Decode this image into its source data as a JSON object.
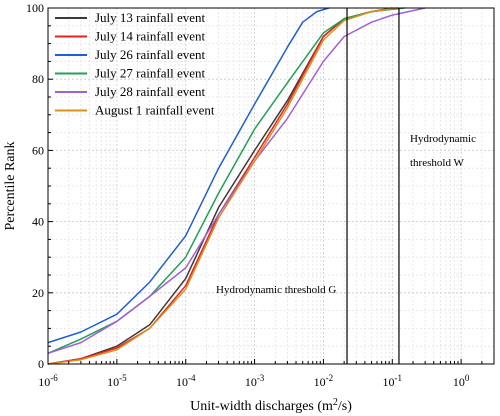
{
  "chart_data": {
    "type": "line",
    "title": "",
    "xlabel": "Unit-width discharges (m",
    "xlabel_sup": "2",
    "xlabel_end": "/s)",
    "ylabel": "Percentile Rank",
    "x_scale": "log",
    "xlim": [
      1e-06,
      3
    ],
    "ylim": [
      0,
      100
    ],
    "grid": true,
    "legend_position": "top-left",
    "x_ticks": [
      {
        "value": 1e-06,
        "base": "10",
        "exp": "-6"
      },
      {
        "value": 1e-05,
        "base": "10",
        "exp": "-5"
      },
      {
        "value": 0.0001,
        "base": "10",
        "exp": "-4"
      },
      {
        "value": 0.001,
        "base": "10",
        "exp": "-3"
      },
      {
        "value": 0.01,
        "base": "10",
        "exp": "-2"
      },
      {
        "value": 0.1,
        "base": "10",
        "exp": "-1"
      },
      {
        "value": 1,
        "base": "10",
        "exp": "0"
      }
    ],
    "y_ticks": [
      0,
      20,
      40,
      60,
      80,
      100
    ],
    "series": [
      {
        "name": "July 13 rainfall event",
        "color": "#3a3a3a",
        "x": [
          1e-06,
          3e-06,
          1e-05,
          3e-05,
          0.0001,
          0.0003,
          0.001,
          0.003,
          0.01,
          0.02,
          0.05,
          0.1
        ],
        "y": [
          0,
          1.5,
          5,
          11,
          24,
          44,
          60,
          74,
          92,
          97,
          99,
          100
        ]
      },
      {
        "name": "July 14 rainfall event",
        "color": "#e8221e",
        "x": [
          1e-06,
          3e-06,
          1e-05,
          3e-05,
          0.0001,
          0.0003,
          0.001,
          0.003,
          0.01,
          0.02,
          0.05,
          0.12
        ],
        "y": [
          0,
          1.5,
          4.5,
          10,
          22,
          42,
          58,
          73,
          92,
          97,
          99,
          100
        ]
      },
      {
        "name": "July 26 rainfall event",
        "color": "#1f5fd6",
        "x": [
          1e-06,
          3e-06,
          1e-05,
          3e-05,
          0.0001,
          0.0003,
          0.001,
          0.003,
          0.005,
          0.008,
          0.012
        ],
        "y": [
          6,
          9,
          14,
          23,
          36,
          55,
          73,
          89,
          96,
          99,
          100
        ]
      },
      {
        "name": "July 27 rainfall event",
        "color": "#22a055",
        "x": [
          1e-06,
          3e-06,
          1e-05,
          3e-05,
          0.0001,
          0.0003,
          0.001,
          0.003,
          0.01,
          0.02,
          0.05,
          0.15
        ],
        "y": [
          3,
          7,
          12,
          19,
          30,
          48,
          66,
          79,
          93,
          97,
          99,
          100
        ]
      },
      {
        "name": "July 28 rainfall event",
        "color": "#a35fd8",
        "x": [
          1e-06,
          3e-06,
          1e-05,
          3e-05,
          0.0001,
          0.0003,
          0.001,
          0.003,
          0.01,
          0.02,
          0.05,
          0.1,
          0.3
        ],
        "y": [
          3,
          6,
          12,
          19,
          27,
          42,
          57,
          69,
          85,
          92,
          96,
          98,
          100
        ]
      },
      {
        "name": "August 1 rainfall event",
        "color": "#d8921e",
        "x": [
          1e-06,
          3e-06,
          1e-05,
          3e-05,
          0.0001,
          0.0003,
          0.001,
          0.003,
          0.01,
          0.02,
          0.05,
          0.12
        ],
        "y": [
          0,
          1.2,
          4,
          10,
          21,
          41,
          57,
          72,
          91,
          96.5,
          99,
          100
        ]
      }
    ],
    "vlines": [
      {
        "x": 0.022,
        "label": "Hydrodynamic threshold G"
      },
      {
        "x": 0.125,
        "label_lines": [
          "Hydrodynamic",
          "threshold W"
        ]
      }
    ]
  }
}
